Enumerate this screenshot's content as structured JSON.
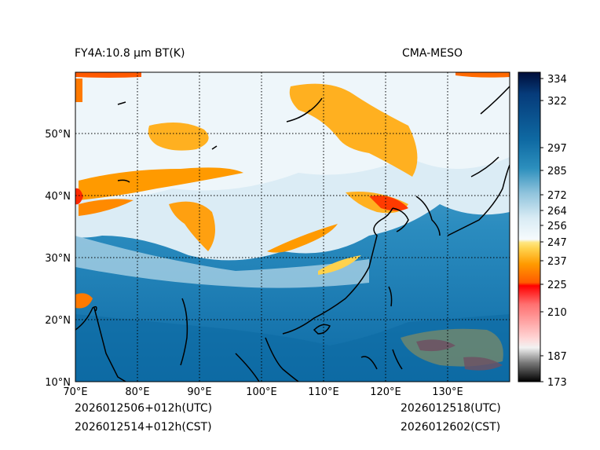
{
  "header": {
    "product": "FY4A:10.8 µm BT(K)",
    "model": "CMA-MESO"
  },
  "footer": {
    "init_utc": "2026012506+012h(UTC)",
    "init_cst": "2026012514+012h(CST)",
    "valid_utc": "2026012518(UTC)",
    "valid_cst": "2026012602(CST)"
  },
  "map": {
    "lon_labels": [
      "70°E",
      "80°E",
      "90°E",
      "100°E",
      "110°E",
      "120°E",
      "130°E"
    ],
    "lat_labels": [
      "10°N",
      "20°N",
      "30°N",
      "40°N",
      "50°N"
    ],
    "lon_range": [
      70,
      140
    ],
    "lat_range": [
      10,
      60
    ]
  },
  "colorbar": {
    "ticks": [
      "173",
      "187",
      "210",
      "225",
      "237",
      "247",
      "256",
      "264",
      "272",
      "285",
      "297",
      "322",
      "334"
    ],
    "range": [
      173,
      336
    ],
    "colors": {
      "cold_low": "#000000",
      "grey": "#cfcfcf",
      "red": "#ff1a1a",
      "orange": "#ff9900",
      "yellow": "#ffd24d",
      "white": "#f6fbfd",
      "light_blue": "#b9daea",
      "blue": "#2c8fbd",
      "deep_blue": "#0f6aa3",
      "navy": "#001a55"
    }
  }
}
